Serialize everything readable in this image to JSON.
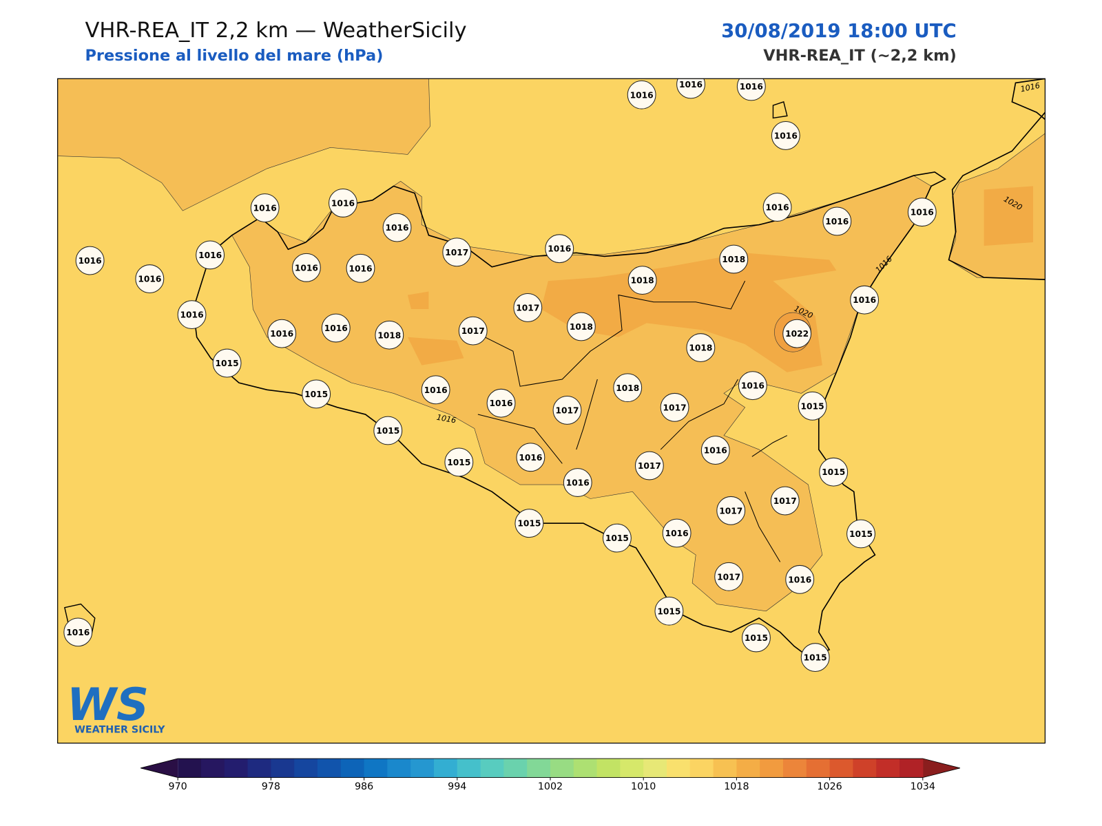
{
  "header": {
    "title": "VHR-REA_IT 2,2 km — WeatherSicily",
    "subtitle": "Pressione al livello del mare (hPa)",
    "datetime": "30/08/2019 18:00 UTC",
    "model": "VHR-REA_IT (~2,2 km)"
  },
  "stations": [
    1016,
    1016,
    1016,
    1016,
    1016,
    1016,
    1016,
    1017,
    1016,
    1016,
    1016,
    1016,
    1016,
    1016,
    1016,
    1016,
    1016,
    1018,
    1018,
    1017,
    1016,
    1016,
    1016,
    1018,
    1017,
    1018,
    1016,
    1022,
    1018,
    1015,
    1015,
    1016,
    1016,
    1017,
    1018,
    1017,
    1016,
    1015,
    1015,
    1015,
    1016,
    1016,
    1017,
    1016,
    1015,
    1017,
    1017,
    1015,
    1015,
    1016,
    1015,
    1017,
    1016,
    1015,
    1015,
    1015,
    1016
  ],
  "contour_labels": [
    "1016",
    "1020",
    "1016",
    "1020",
    "1016"
  ],
  "logo": {
    "mark": "WS",
    "text": "WEATHER SICILY"
  },
  "colorbar": {
    "lim": [
      970,
      1034
    ],
    "ticks": [
      970,
      978,
      986,
      994,
      1002,
      1010,
      1018,
      1026,
      1034
    ],
    "colors": [
      "#23124f",
      "#261760",
      "#231d6e",
      "#1e2a80",
      "#193890",
      "#15469f",
      "#1154ac",
      "#0d64b8",
      "#0f76c4",
      "#1a88cc",
      "#2597d0",
      "#33aed2",
      "#45c0cb",
      "#58ccbf",
      "#6ad2ad",
      "#82d897",
      "#98dc83",
      "#ade072",
      "#c2e364",
      "#d6e86a",
      "#e7e876",
      "#f9e06d",
      "#fbd462",
      "#f7c152",
      "#f4ad46",
      "#f19b3f",
      "#ec853a",
      "#e56f33",
      "#dc592d",
      "#cf4129",
      "#c22e28",
      "#b02226"
    ],
    "under": "#2a0f45",
    "over": "#8a1e1e"
  }
}
